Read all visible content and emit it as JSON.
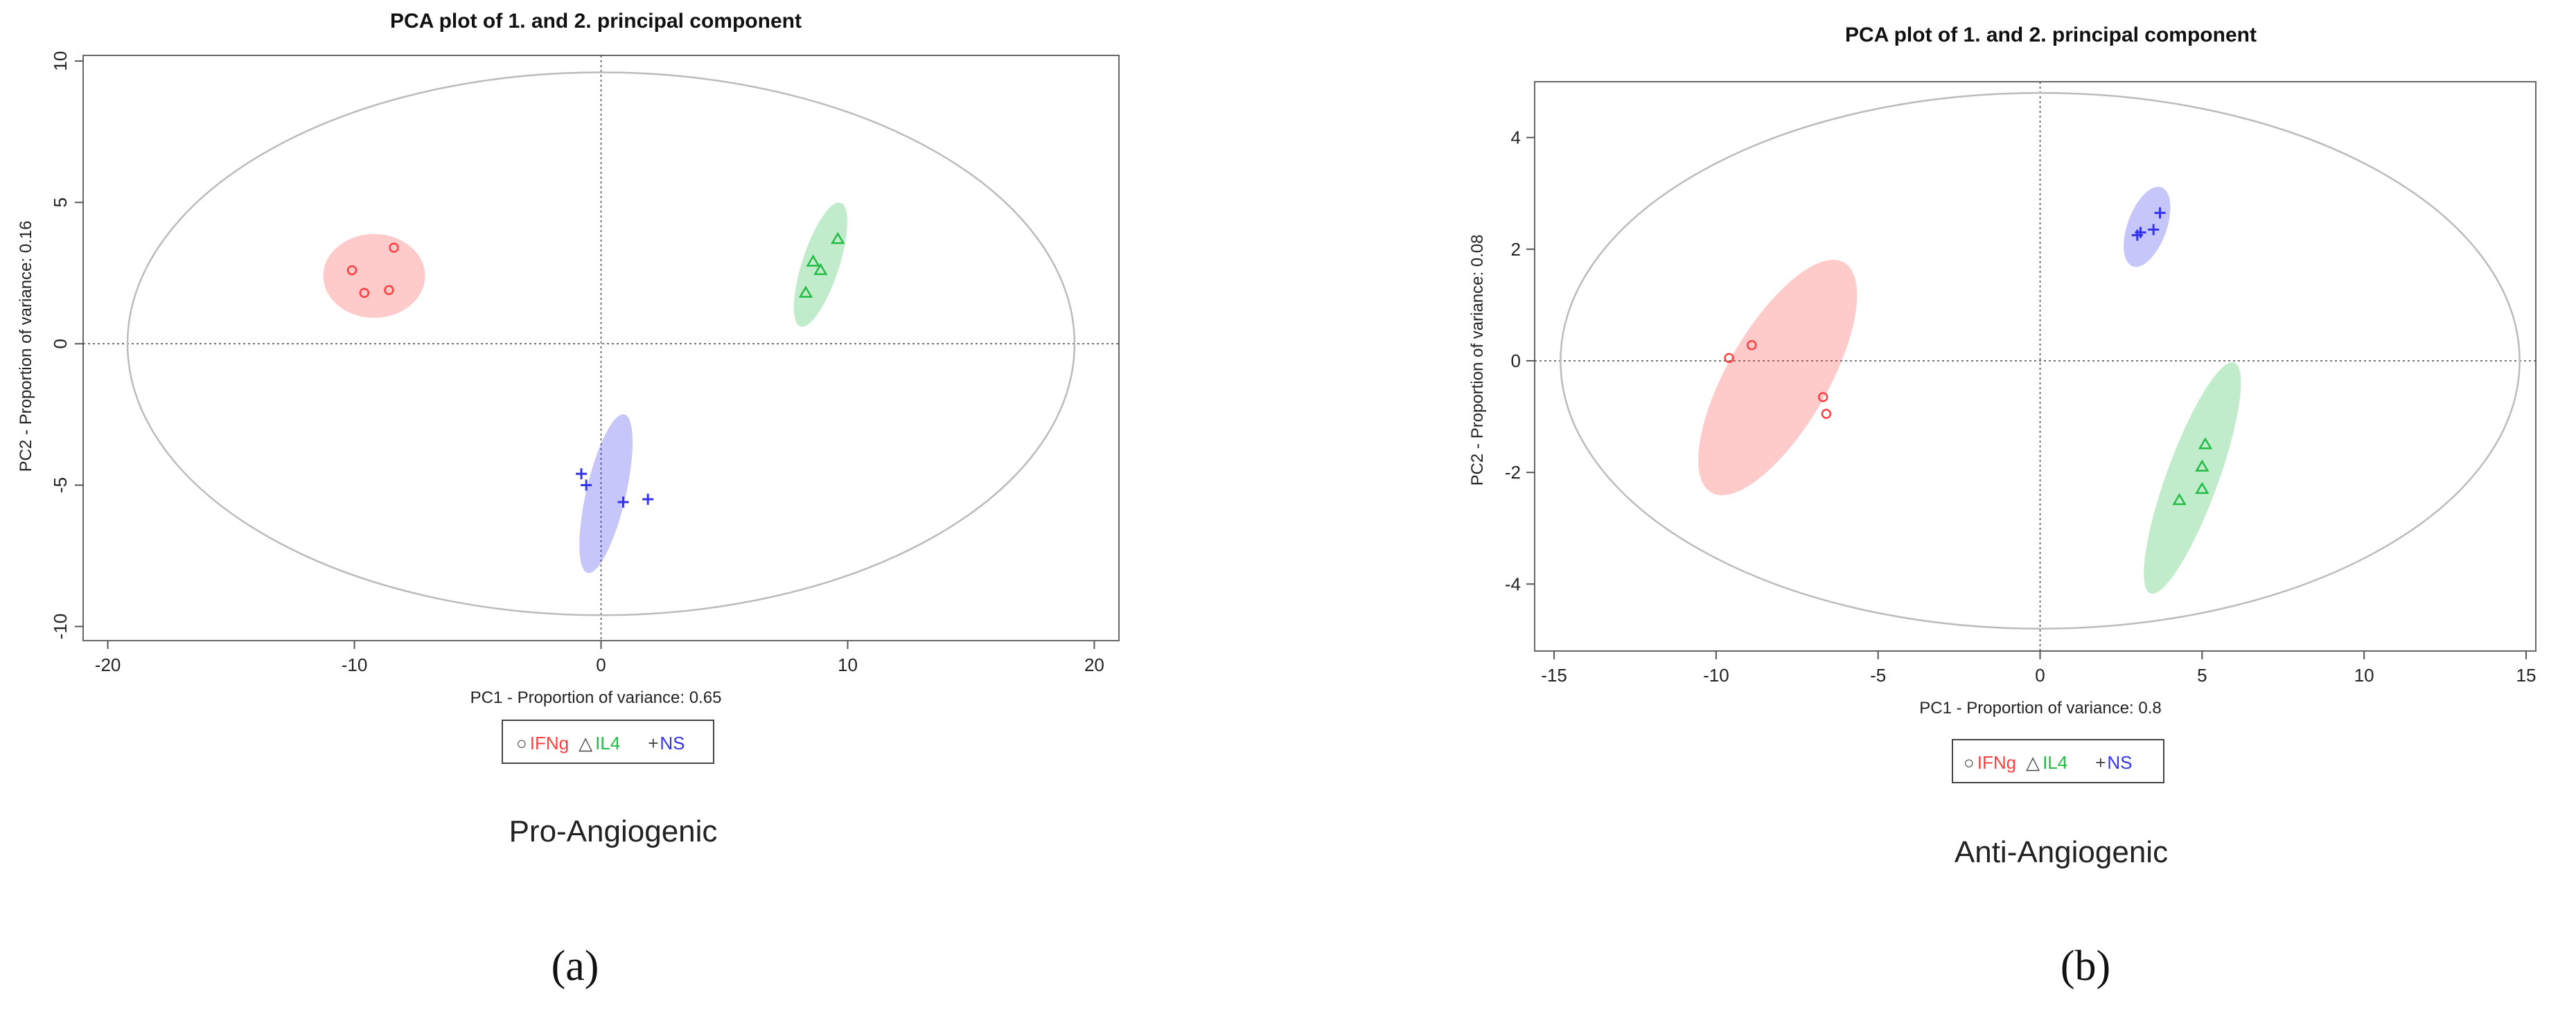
{
  "colors": {
    "IFNg": "#ff4040",
    "IL4": "#22bb44",
    "NS": "#3333ee"
  },
  "chart_data": [
    {
      "type": "scatter",
      "title": "PCA plot of 1. and 2. principal component",
      "xlabel": "PC1  -  Proportion of variance: 0.65",
      "ylabel": "PC2  -  Proportion of variance: 0.16",
      "xlim": [
        -21,
        21
      ],
      "ylim": [
        -10.5,
        10.2
      ],
      "xticks": [
        -20,
        -10,
        0,
        10,
        20
      ],
      "yticks": [
        -10,
        -5,
        0,
        5,
        10
      ],
      "caption": "Pro-Angiogenic",
      "panel_label": "(a)",
      "legend": {
        "placement": "bottom",
        "entries": [
          {
            "symbol": "○",
            "name": "IFNg"
          },
          {
            "symbol": "△",
            "name": "IL4"
          },
          {
            "symbol": "+",
            "name": "NS"
          }
        ]
      },
      "big_ellipse": {
        "cx": 0,
        "cy": 0,
        "rx": 19.2,
        "ry": 9.6
      },
      "series": [
        {
          "name": "IFNg",
          "marker": "circle",
          "x": [
            -10.1,
            -9.6,
            -8.6,
            -8.4
          ],
          "y": [
            2.6,
            1.8,
            1.9,
            3.4
          ],
          "ellipse": {
            "cx": -9.2,
            "cy": 2.4,
            "rx": 1.7,
            "ry": 1.8,
            "angle": 0
          }
        },
        {
          "name": "IL4",
          "marker": "triangle",
          "x": [
            8.3,
            8.6,
            8.9,
            9.6
          ],
          "y": [
            1.8,
            2.9,
            2.6,
            3.7
          ],
          "ellipse": {
            "cx": 8.9,
            "cy": 2.8,
            "rx": 0.75,
            "ry": 2.3,
            "angle": 72
          }
        },
        {
          "name": "NS",
          "marker": "plus",
          "x": [
            -0.8,
            -0.6,
            0.9,
            1.9
          ],
          "y": [
            -4.6,
            -5.0,
            -5.6,
            -5.5
          ],
          "ellipse": {
            "cx": 0.2,
            "cy": -5.3,
            "rx": 3.3,
            "ry": 0.7,
            "angle": -13
          }
        }
      ]
    },
    {
      "type": "scatter",
      "title": "PCA plot of 1. and 2. principal component",
      "xlabel": "PC1  -  Proportion of variance: 0.8",
      "ylabel": "PC2  -  Proportion of variance: 0.08",
      "xlim": [
        -15.6,
        15.3
      ],
      "ylim": [
        -5.2,
        5.0
      ],
      "xticks": [
        -15,
        -10,
        -5,
        0,
        5,
        10,
        15
      ],
      "yticks": [
        -4,
        -2,
        0,
        2,
        4
      ],
      "caption": "Anti-Angiogenic",
      "panel_label": "(b)",
      "legend": {
        "placement": "bottom",
        "entries": [
          {
            "symbol": "○",
            "name": "IFNg"
          },
          {
            "symbol": "△",
            "name": "IL4"
          },
          {
            "symbol": "+",
            "name": "NS"
          }
        ]
      },
      "big_ellipse": {
        "cx": 0,
        "cy": 0,
        "rx": 14.8,
        "ry": 4.8
      },
      "series": [
        {
          "name": "IFNg",
          "marker": "circle",
          "x": [
            -9.6,
            -8.9,
            -6.7,
            -6.6
          ],
          "y": [
            0.05,
            0.28,
            -0.65,
            -0.95
          ],
          "ellipse": {
            "cx": -8.1,
            "cy": -0.3,
            "rx": 4.1,
            "ry": 0.9,
            "angle": -30
          }
        },
        {
          "name": "IL4",
          "marker": "triangle",
          "x": [
            4.3,
            5.0,
            5.0,
            5.1
          ],
          "y": [
            -2.5,
            -2.3,
            -1.9,
            -1.5
          ],
          "ellipse": {
            "cx": 4.7,
            "cy": -2.1,
            "rx": 0.8,
            "ry": 2.2,
            "angle": 70
          }
        },
        {
          "name": "NS",
          "marker": "plus",
          "x": [
            3.0,
            3.1,
            3.5,
            3.7
          ],
          "y": [
            2.25,
            2.3,
            2.35,
            2.65
          ],
          "ellipse": {
            "cx": 3.3,
            "cy": 2.4,
            "rx": 1.3,
            "ry": 0.35,
            "angle": -20
          }
        }
      ]
    }
  ]
}
